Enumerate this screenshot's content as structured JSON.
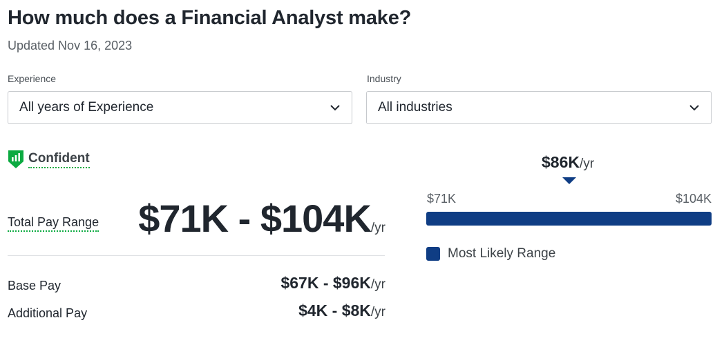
{
  "header": {
    "title": "How much does a Financial Analyst make?",
    "updated": "Updated Nov 16, 2023"
  },
  "filters": {
    "experience": {
      "label": "Experience",
      "value": "All years of Experience",
      "icon": "chevron-down-icon"
    },
    "industry": {
      "label": "Industry",
      "value": "All industries",
      "icon": "chevron-down-icon"
    }
  },
  "confidence": {
    "label": "Confident",
    "icon": "confidence-shield-icon",
    "color": "#0caa41"
  },
  "total_pay": {
    "label": "Total Pay Range",
    "value": "$71K - $104K",
    "unit": "/yr"
  },
  "base_pay": {
    "label": "Base Pay",
    "value": "$67K - $96K",
    "unit": "/yr"
  },
  "additional_pay": {
    "label": "Additional Pay",
    "value": "$4K - $8K",
    "unit": "/yr"
  },
  "range_chart": {
    "median_label": "$86K",
    "median_unit": "/yr",
    "min_label": "$71K",
    "max_label": "$104K",
    "min": 71,
    "max": 104,
    "median": 86,
    "likely_low": 71,
    "likely_high": 104,
    "bar_color": "#0f3d84",
    "legend_label": "Most Likely Range"
  }
}
